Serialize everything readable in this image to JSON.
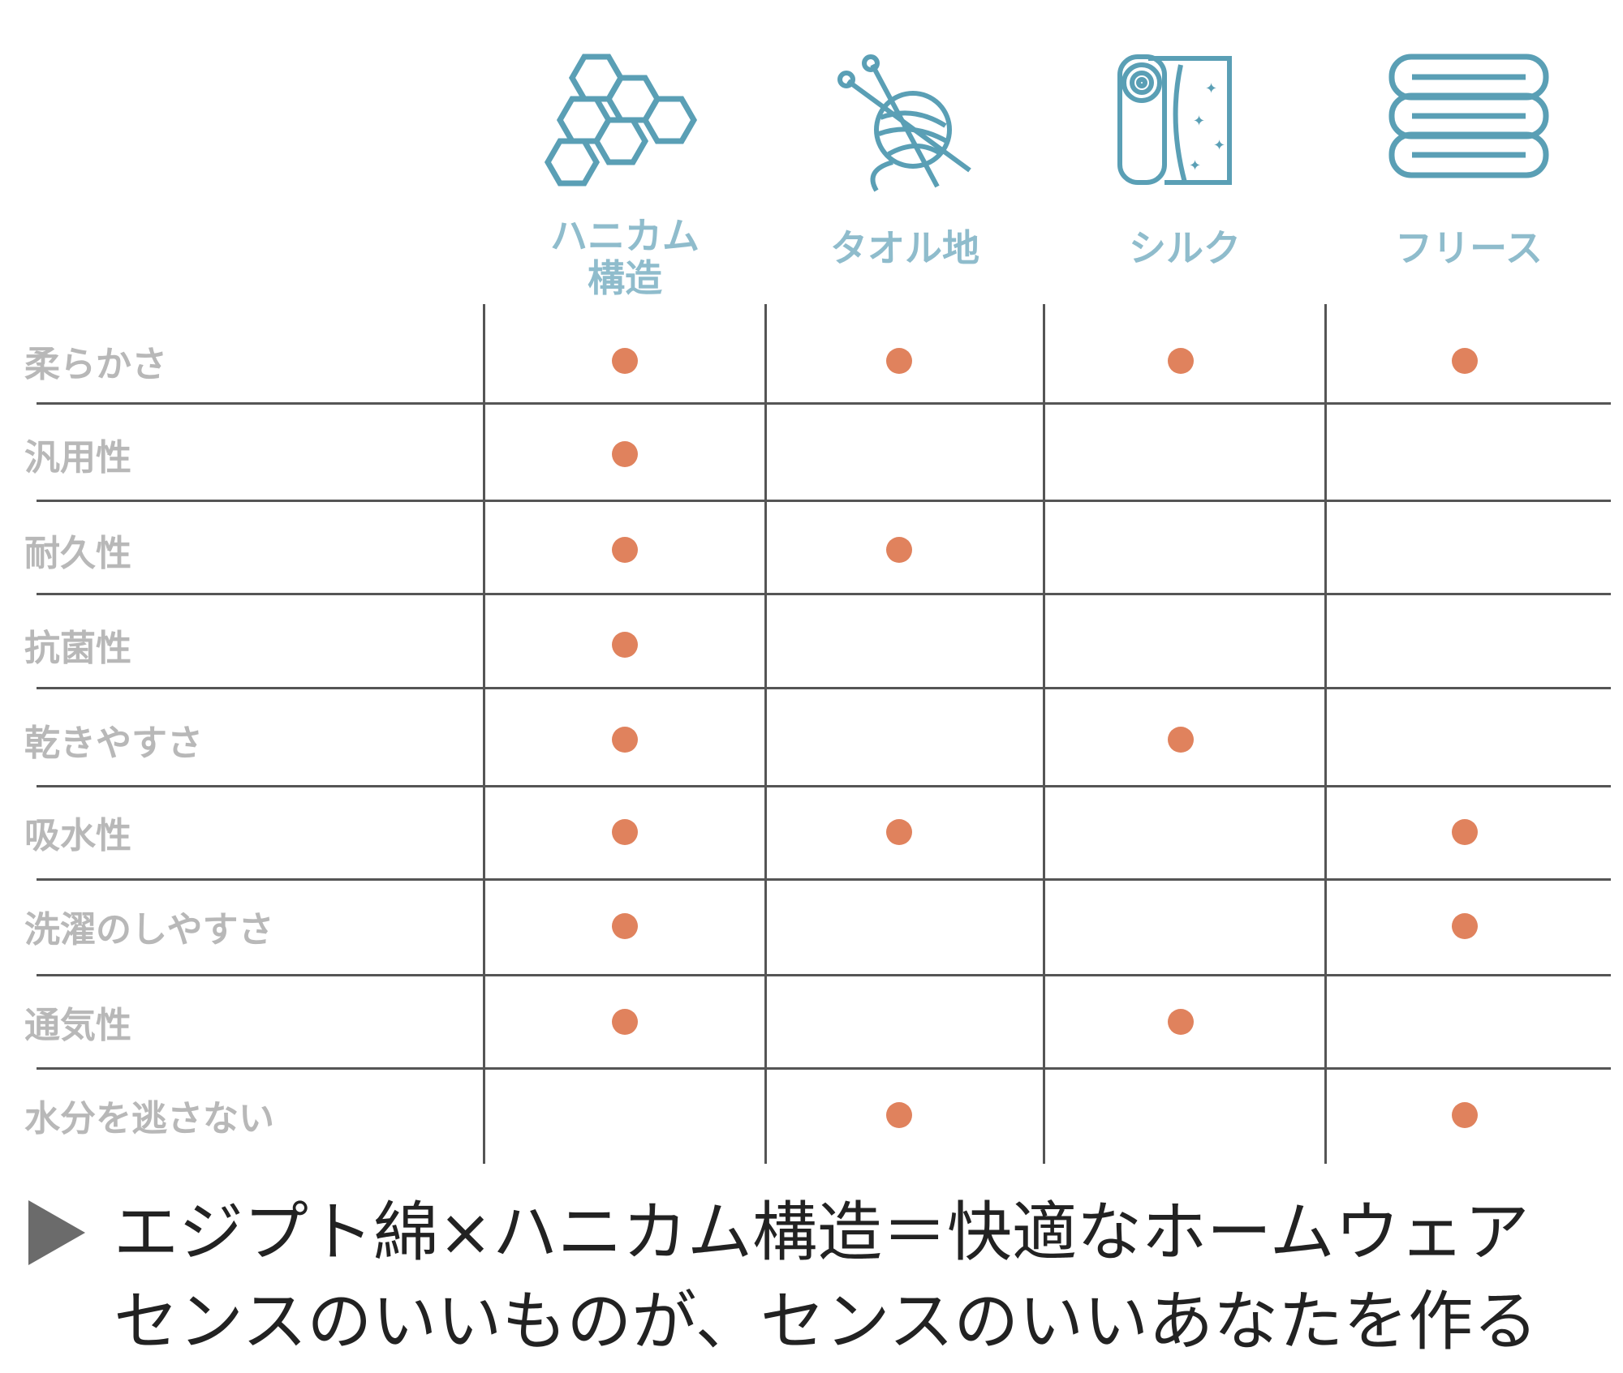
{
  "colors": {
    "accent_blue": "#5a9fb5",
    "label_blue": "#8fbccc",
    "dot_orange": "#e0825d",
    "row_gray": "#b8b8b8"
  },
  "columns": [
    {
      "label_line1": "ハニカム",
      "label_line2": "構造",
      "icon": "honeycomb-icon"
    },
    {
      "label_line1": "タオル地",
      "label_line2": "",
      "icon": "yarn-ball-icon"
    },
    {
      "label_line1": "シルク",
      "label_line2": "",
      "icon": "silk-roll-icon"
    },
    {
      "label_line1": "フリース",
      "label_line2": "",
      "icon": "folded-fleece-icon"
    }
  ],
  "rows": [
    {
      "label": "柔らかさ",
      "marks": [
        true,
        true,
        true,
        true
      ]
    },
    {
      "label": "汎用性",
      "marks": [
        true,
        false,
        false,
        false
      ]
    },
    {
      "label": "耐久性",
      "marks": [
        true,
        true,
        false,
        false
      ]
    },
    {
      "label": "抗菌性",
      "marks": [
        true,
        false,
        false,
        false
      ]
    },
    {
      "label": "乾きやすさ",
      "marks": [
        true,
        false,
        true,
        false
      ]
    },
    {
      "label": "吸水性",
      "marks": [
        true,
        true,
        false,
        true
      ]
    },
    {
      "label": "洗濯のしやすさ",
      "marks": [
        true,
        false,
        false,
        true
      ]
    },
    {
      "label": "通気性",
      "marks": [
        true,
        false,
        true,
        false
      ]
    },
    {
      "label": "水分を逃さない",
      "marks": [
        false,
        true,
        false,
        true
      ]
    }
  ],
  "footer": {
    "line1": "エジプト綿×ハニカム構造＝快適なホームウェア",
    "line2": "センスのいいものが、センスのいいあなたを作る"
  }
}
